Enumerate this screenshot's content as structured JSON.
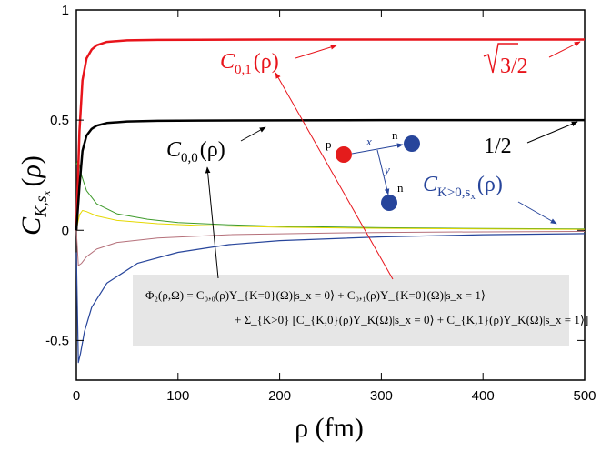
{
  "chart_data": {
    "type": "line",
    "xlabel": "ρ (fm)",
    "ylabel": "C_{K,s_x}(ρ)",
    "xlim": [
      0,
      500
    ],
    "ylim": [
      -0.68,
      1.0
    ],
    "x_ticks": [
      "0",
      "100",
      "200",
      "300",
      "400",
      "500"
    ],
    "y_ticks": [
      "-0.5",
      "0",
      "0.5",
      "1"
    ],
    "grid": false,
    "series": [
      {
        "name": "C_{0,1}(ρ)",
        "color": "#e8141b",
        "width": 2.5,
        "x": [
          0,
          3,
          6,
          10,
          15,
          20,
          30,
          50,
          80,
          120,
          200,
          300,
          400,
          500
        ],
        "y": [
          0.0,
          0.45,
          0.68,
          0.78,
          0.82,
          0.84,
          0.855,
          0.862,
          0.864,
          0.865,
          0.866,
          0.866,
          0.866,
          0.866
        ]
      },
      {
        "name": "C_{0,0}(ρ)",
        "color": "#000000",
        "width": 2.5,
        "x": [
          0,
          3,
          6,
          10,
          15,
          20,
          30,
          50,
          80,
          120,
          200,
          300,
          400,
          500
        ],
        "y": [
          0.0,
          0.2,
          0.36,
          0.43,
          0.46,
          0.475,
          0.487,
          0.494,
          0.497,
          0.498,
          0.499,
          0.5,
          0.5,
          0.5
        ]
      },
      {
        "name": "C_{K>0,s_x}(ρ)",
        "color": "#27459b",
        "width": 1.2,
        "x": [
          0,
          2,
          4,
          8,
          15,
          30,
          60,
          100,
          150,
          200,
          300,
          400,
          500
        ],
        "y": [
          -0.1,
          -0.6,
          -0.56,
          -0.46,
          -0.35,
          -0.24,
          -0.15,
          -0.1,
          -0.065,
          -0.047,
          -0.03,
          -0.02,
          -0.015
        ]
      },
      {
        "name": "green",
        "color": "#3d9a2a",
        "width": 1.0,
        "x": [
          0,
          2,
          5,
          10,
          20,
          40,
          70,
          100,
          150,
          200,
          300,
          400,
          500
        ],
        "y": [
          0.3,
          0.32,
          0.25,
          0.18,
          0.12,
          0.075,
          0.05,
          0.035,
          0.025,
          0.018,
          0.012,
          0.008,
          0.006
        ]
      },
      {
        "name": "yellow",
        "color": "#e5d800",
        "width": 1.0,
        "x": [
          0,
          3,
          6,
          10,
          20,
          40,
          80,
          120,
          200,
          300,
          400,
          500
        ],
        "y": [
          0.0,
          0.07,
          0.09,
          0.085,
          0.065,
          0.045,
          0.03,
          0.022,
          0.014,
          0.009,
          0.006,
          0.004
        ]
      },
      {
        "name": "pink",
        "color": "#b5707a",
        "width": 1.0,
        "x": [
          0,
          2,
          5,
          10,
          20,
          40,
          80,
          150,
          250,
          350,
          500
        ],
        "y": [
          0.0,
          -0.16,
          -0.15,
          -0.12,
          -0.085,
          -0.055,
          -0.035,
          -0.02,
          -0.012,
          -0.008,
          -0.005
        ]
      }
    ]
  },
  "labels": {
    "c01": "C",
    "c01_sub": "0,1",
    "c01_arg": "(ρ)",
    "c00": "C",
    "c00_sub": "0,0",
    "c00_arg": "(ρ)",
    "ck": "C",
    "ck_sub": "K>0,s",
    "ck_subsub": "x",
    "ck_arg": "(ρ)",
    "sqrt3": "3/2",
    "half": "1/2"
  },
  "inset": {
    "p_label": "p",
    "n1_label": "n",
    "n2_label": "n",
    "x_label": "x",
    "y_label": "y",
    "p_color": "#e41c1c",
    "n_color": "#27459b"
  },
  "formula": {
    "line1": "Φ₂(ρ,Ω) = C₀,₀(ρ)Y_{K=0}(Ω)|s_x = 0⟩ + C₀,₁(ρ)Y_{K=0}(Ω)|s_x = 1⟩",
    "line2": "+ Σ_{K>0} [C_{K,0}(ρ)Y_K(Ω)|s_x = 0⟩ + C_{K,1}(ρ)Y_K(Ω)|s_x = 1⟩]",
    "box_color": "#e6e6e6"
  }
}
